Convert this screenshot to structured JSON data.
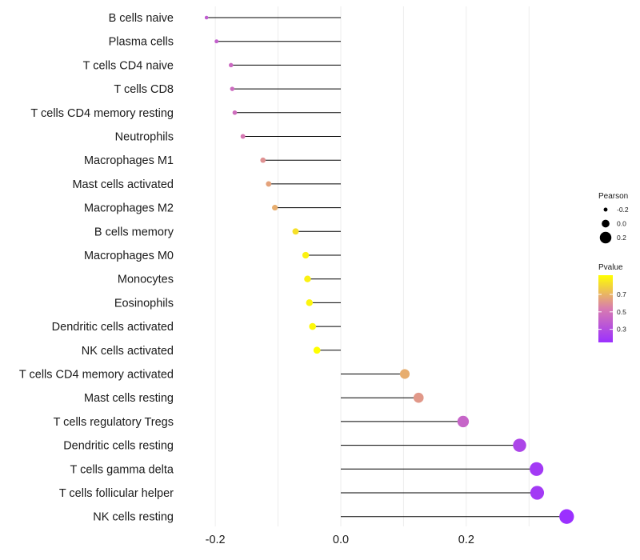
{
  "chart_data": {
    "type": "lollipop",
    "categories": [
      "B cells naive",
      "Plasma cells",
      "T cells CD4 naive",
      "T cells CD8",
      "T cells CD4 memory resting",
      "Neutrophils",
      "Macrophages M1",
      "Mast cells activated",
      "Macrophages M2",
      "B cells memory",
      "Macrophages M0",
      "Monocytes",
      "Eosinophils",
      "Dendritic cells activated",
      "NK cells activated",
      "T cells CD4 memory activated",
      "Mast cells resting",
      "T cells regulatory  Tregs ",
      "Dendritic cells resting",
      "T cells gamma delta",
      "T cells follicular helper",
      "NK cells resting"
    ],
    "pearson": [
      -0.214,
      -0.198,
      -0.175,
      -0.173,
      -0.169,
      -0.156,
      -0.124,
      -0.115,
      -0.105,
      -0.072,
      -0.056,
      -0.053,
      -0.05,
      -0.045,
      -0.038,
      0.102,
      0.124,
      0.195,
      0.285,
      0.312,
      0.313,
      0.36
    ],
    "pvalue": [
      0.38,
      0.4,
      0.45,
      0.46,
      0.47,
      0.52,
      0.6,
      0.65,
      0.68,
      0.83,
      0.88,
      0.88,
      0.89,
      0.9,
      0.92,
      0.68,
      0.62,
      0.42,
      0.26,
      0.2,
      0.2,
      0.15
    ],
    "xlim": [
      -0.255,
      0.38
    ],
    "x_ticks": [
      -0.2,
      0.0,
      0.2
    ],
    "x_tick_labels": [
      "-0.2",
      "0.0",
      "0.2"
    ],
    "xlabel": "",
    "ylabel": "",
    "grid": true,
    "legend": {
      "size_title": "Pearson",
      "size_values": [
        -0.2,
        0.0,
        0.2
      ],
      "size_labels": [
        "-0.2",
        "0.0",
        "0.2"
      ],
      "color_title": "Pvalue",
      "color_ticks": [
        0.7,
        0.5,
        0.3
      ],
      "color_tick_labels": [
        "0.7",
        "0.5",
        "0.3"
      ],
      "color_range": [
        0.15,
        0.92
      ],
      "color_low": "#9B30FF",
      "color_mid": "#D87BB0",
      "color_high": "#FFFF00",
      "placement": "right"
    },
    "colors": {
      "segment": "#000000",
      "grid": "#ebebeb",
      "background": "#ffffff"
    }
  }
}
